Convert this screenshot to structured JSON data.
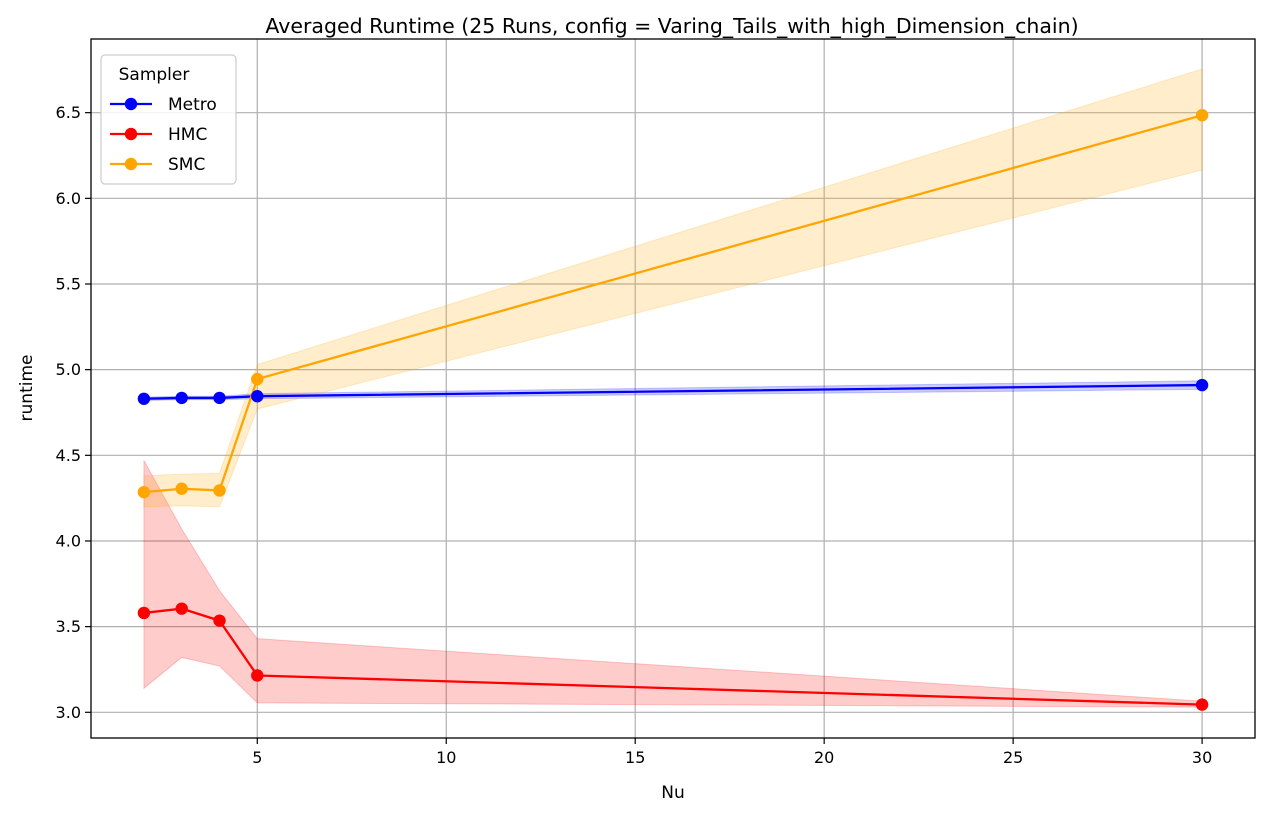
{
  "chart_data": {
    "type": "line",
    "title": "Averaged Runtime (25 Runs, config = Varing_Tails_with_high_Dimension_chain)",
    "xlabel": "Nu",
    "ylabel": "runtime",
    "xlim": [
      0.6,
      31.4
    ],
    "ylim": [
      2.85,
      6.93
    ],
    "xticks": [
      5,
      10,
      15,
      20,
      25,
      30
    ],
    "yticks": [
      3.0,
      3.5,
      4.0,
      4.5,
      5.0,
      5.5,
      6.0,
      6.5
    ],
    "grid": true,
    "legend": {
      "title": "Sampler",
      "placement": "top-left"
    },
    "x": [
      2,
      3,
      4,
      5,
      30
    ],
    "series": [
      {
        "name": "Metro",
        "color": "#0000ff",
        "values": [
          4.83,
          4.835,
          4.835,
          4.845,
          4.91
        ],
        "lower": [
          4.82,
          4.825,
          4.825,
          4.83,
          4.885
        ],
        "upper": [
          4.84,
          4.845,
          4.845,
          4.86,
          4.935
        ]
      },
      {
        "name": "HMC",
        "color": "#ff0000",
        "values": [
          3.58,
          3.605,
          3.535,
          3.215,
          3.045
        ],
        "lower": [
          3.14,
          3.32,
          3.27,
          3.055,
          3.03
        ],
        "upper": [
          4.47,
          4.07,
          3.71,
          3.43,
          3.065
        ]
      },
      {
        "name": "SMC",
        "color": "#ffa500",
        "values": [
          4.285,
          4.305,
          4.295,
          4.945,
          6.485
        ],
        "lower": [
          4.2,
          4.205,
          4.2,
          4.77,
          6.165
        ],
        "upper": [
          4.38,
          4.39,
          4.395,
          5.03,
          6.755
        ]
      }
    ]
  }
}
